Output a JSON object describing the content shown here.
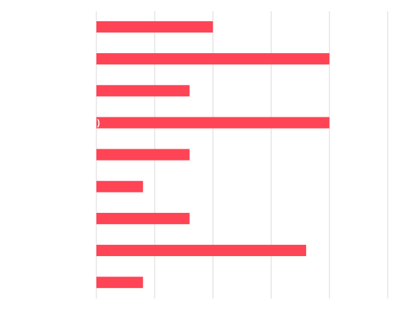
{
  "chart_data": {
    "type": "bar",
    "orientation": "horizontal",
    "values": [
      2,
      4,
      1.6,
      4,
      1.6,
      0.8,
      1.6,
      3.6,
      0.8
    ],
    "xlim": [
      0,
      5
    ],
    "grid": "vertical",
    "bar_color": "#ff4455",
    "grid_color": "#d9d9d9",
    "annotations": [
      {
        "bar_index": 3,
        "text": ")"
      }
    ]
  }
}
